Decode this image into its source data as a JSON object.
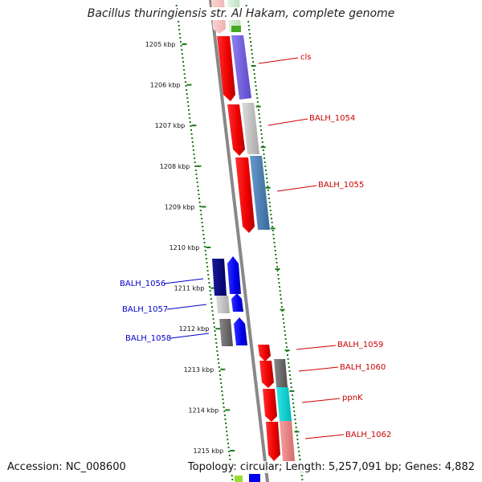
{
  "title": "Bacillus thuringiensis str. Al Hakam, complete genome",
  "accession": "Accession: NC_008600",
  "summary": "Topology: circular; Length: 5,257,091 bp; Genes: 4,882",
  "scale_labels": [
    "1205 kbp",
    "1206 kbp",
    "1207 kbp",
    "1208 kbp",
    "1209 kbp",
    "1210 kbp",
    "1211 kbp",
    "1212 kbp",
    "1213 kbp",
    "1214 kbp",
    "1215 kbp"
  ],
  "colors": {
    "forward_label": "#cc0000",
    "reverse_label": "#0000cc",
    "backbone": "#888888",
    "tick_green": "#1a7a1a",
    "cds_red": "#ee0000",
    "cds_blue": "#0000ee"
  },
  "genes": [
    {
      "label": "cls",
      "strand": "forward"
    },
    {
      "label": "BALH_1054",
      "strand": "forward"
    },
    {
      "label": "BALH_1055",
      "strand": "forward"
    },
    {
      "label": "BALH_1056",
      "strand": "reverse"
    },
    {
      "label": "BALH_1057",
      "strand": "reverse"
    },
    {
      "label": "BALH_1058",
      "strand": "reverse"
    },
    {
      "label": "BALH_1059",
      "strand": "forward"
    },
    {
      "label": "BALH_1060",
      "strand": "forward"
    },
    {
      "label": "ppnK",
      "strand": "forward"
    },
    {
      "label": "BALH_1062",
      "strand": "forward"
    }
  ]
}
